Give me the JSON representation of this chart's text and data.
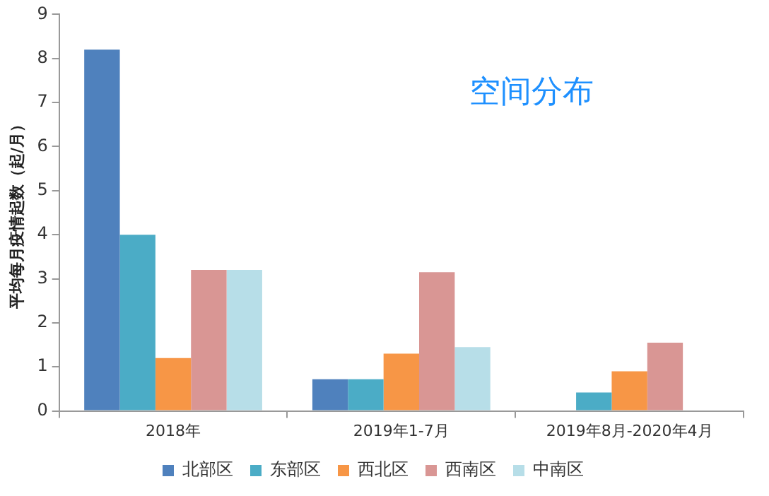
{
  "chart_data": {
    "type": "bar",
    "title": "空间分布",
    "ylabel": "平均每月疫情起数（起/月）",
    "categories": [
      "2018年",
      "2019年1-7月",
      "2019年8月-2020年4月"
    ],
    "series": [
      {
        "name": "北部区",
        "color": "#4f81bd",
        "values": [
          8.2,
          0.72,
          null
        ]
      },
      {
        "name": "东部区",
        "color": "#4bacc6",
        "values": [
          4.0,
          0.72,
          0.42
        ]
      },
      {
        "name": "西北区",
        "color": "#f79646",
        "values": [
          1.2,
          1.3,
          0.9
        ]
      },
      {
        "name": "西南区",
        "color": "#d99694",
        "values": [
          3.2,
          3.15,
          1.55
        ]
      },
      {
        "name": "中南区",
        "color": "#b7dee8",
        "values": [
          3.2,
          1.45,
          null
        ]
      }
    ],
    "ylim": [
      0,
      9
    ],
    "yticks": [
      0,
      1,
      2,
      3,
      4,
      5,
      6,
      7,
      8,
      9
    ],
    "grid": false,
    "legend": "bottom"
  }
}
